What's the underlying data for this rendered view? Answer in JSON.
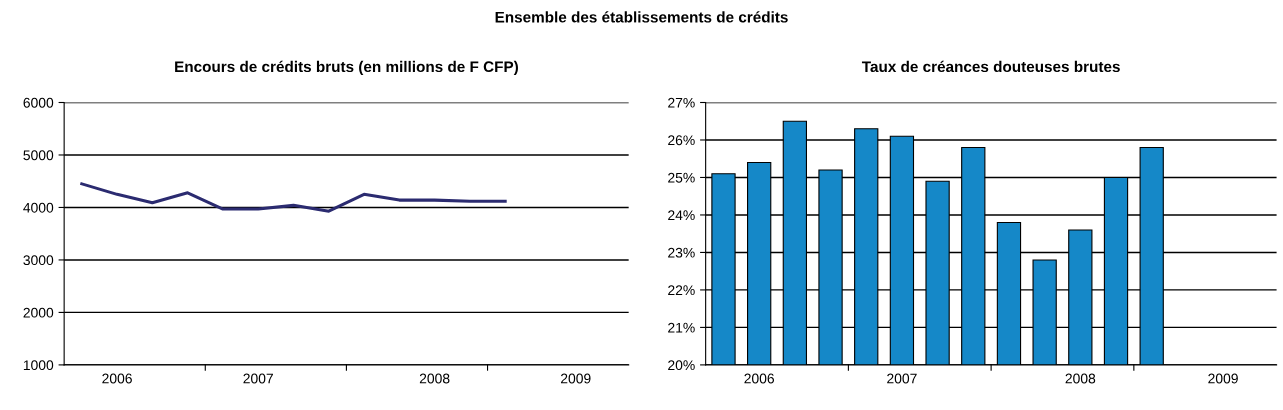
{
  "chart_data": [
    {
      "type": "line",
      "title": "Encours de crédits bruts (en millions de F CFP)",
      "annotations": [
        "Ensemble des établissements de crédits"
      ],
      "categories": [
        null,
        "2006",
        null,
        null,
        null,
        "2007",
        null,
        null,
        null,
        null,
        "2008",
        null,
        null,
        null,
        "2009",
        null
      ],
      "series": [
        {
          "color": "#2b2b70",
          "values": [
            4450,
            4250,
            4090,
            4280,
            3970,
            3970,
            4040,
            3930,
            4250,
            4140,
            4140,
            4120,
            4120,
            null,
            null,
            null
          ]
        }
      ],
      "ylim": [
        1000,
        6000
      ],
      "yticks": [
        1000,
        2000,
        3000,
        4000,
        5000,
        6000
      ],
      "grid": "y",
      "legend": false,
      "marker": "none",
      "line_style": "solid"
    },
    {
      "type": "bar",
      "title": "Taux de créances douteuses brutes",
      "categories": [
        null,
        "2006",
        null,
        null,
        null,
        "2007",
        null,
        null,
        null,
        null,
        "2008",
        null,
        null,
        null,
        "2009",
        null
      ],
      "series": [
        {
          "color": "#1588c8",
          "values": [
            25.1,
            25.4,
            26.5,
            25.2,
            26.3,
            26.1,
            24.9,
            25.8,
            23.8,
            22.8,
            23.6,
            25.0,
            25.8,
            null,
            null,
            null
          ]
        }
      ],
      "ylim": [
        20,
        27
      ],
      "yticks": [
        {
          "value": 20,
          "label": "20%"
        },
        {
          "value": 21,
          "label": "21%"
        },
        {
          "value": 22,
          "label": "22%"
        },
        {
          "value": 23,
          "label": "23%"
        },
        {
          "value": 24,
          "label": "24%"
        },
        {
          "value": 25,
          "label": "25%"
        },
        {
          "value": 26,
          "label": "26%"
        },
        {
          "value": 27,
          "label": "27%"
        }
      ],
      "grid": "y",
      "legend": false
    }
  ]
}
